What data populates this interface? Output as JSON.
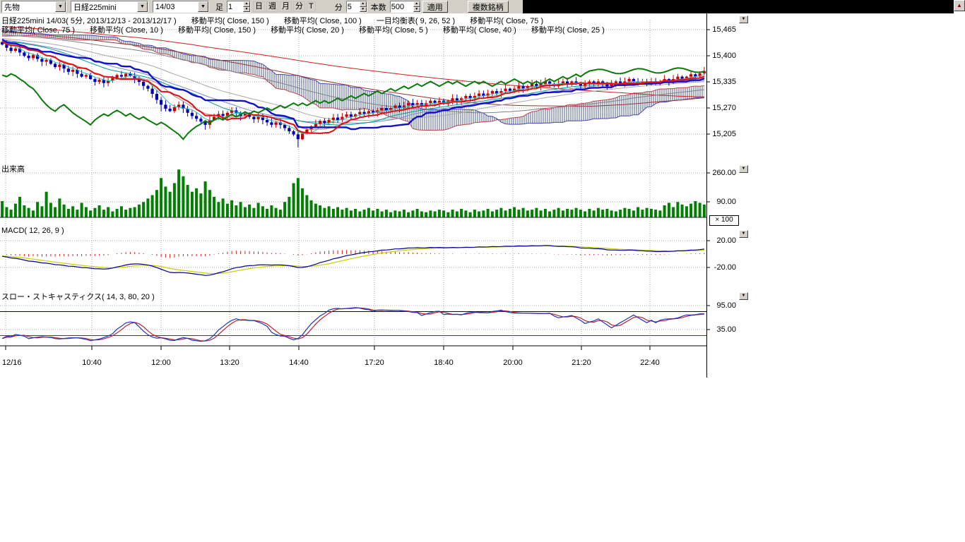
{
  "toolbar": {
    "instrument": "先物",
    "symbol": "日経225mini",
    "contract": "14/03",
    "bar_label": "足",
    "interval_value": "1",
    "unit_day": "日",
    "unit_week": "週",
    "unit_month": "月",
    "unit_minute": "分",
    "unit_tick": "T",
    "minute_label": "分",
    "bars_value": "5",
    "count_label": "本数",
    "count_value": "500",
    "apply_label": "適用",
    "multi_symbol_label": "複数銘柄"
  },
  "legend": {
    "line1": [
      "日経225mini 14/03( 5分, 2013/12/13 - 2013/12/17 )",
      "移動平均( Close, 150 )",
      "移動平均( Close, 100 )",
      "一目均衡表( 9, 26, 52 )",
      "移動平均( Close, 75 )"
    ],
    "line2": [
      "移動平均( Close, 75 )",
      "移動平均( Close, 10 )",
      "移動平均( Close, 150 )",
      "移動平均( Close, 20 )",
      "移動平均( Close, 5 )",
      "移動平均( Close, 40 )",
      "移動平均( Close, 25 )"
    ]
  },
  "panels": {
    "volume_label": "出来高",
    "macd_label": "MACD( 12, 26, 9 )",
    "stoch_label": "スロー・ストキャスティクス( 14, 3, 80, 20 )",
    "multiplier_label": "× 100"
  },
  "chart_data": {
    "type": "candlestick-multi-panel",
    "symbol": "日経225mini 14/03",
    "interval": "5分",
    "date_range": "2013/12/13 - 2013/12/17",
    "price_axis": {
      "ticks": [
        15465,
        15400,
        15335,
        15270,
        15205
      ],
      "labels": [
        "15,465",
        "15,400",
        "15,335",
        "15,270",
        "15,205"
      ]
    },
    "volume_axis": {
      "ticks": [
        260,
        90
      ],
      "labels": [
        "260.00",
        "90.00"
      ]
    },
    "macd_axis": {
      "ticks": [
        20,
        -20
      ],
      "labels": [
        "20.00",
        "-20.00"
      ]
    },
    "stoch_axis": {
      "ticks": [
        95,
        35
      ],
      "labels": [
        "95.00",
        "35.00"
      ]
    },
    "stoch_ref_levels": [
      80,
      20
    ],
    "time_ticks": [
      "12/16",
      "10:40",
      "12:00",
      "13:20",
      "14:40",
      "17:20",
      "18:40",
      "20:00",
      "21:20",
      "22:40"
    ],
    "indicators": {
      "moving_averages": [
        5,
        10,
        20,
        25,
        40,
        75,
        100,
        150
      ],
      "ichimoku": [
        9,
        26,
        52
      ],
      "macd": [
        12,
        26,
        9
      ],
      "stochastics": [
        14,
        3,
        80,
        20
      ]
    },
    "close": [
      15428,
      15420,
      15412,
      15418,
      15408,
      15400,
      15394,
      15402,
      15392,
      15385,
      15390,
      15380,
      15372,
      15378,
      15368,
      15360,
      15365,
      15355,
      15348,
      15352,
      15342,
      15335,
      15340,
      15332,
      15338,
      15345,
      15352,
      15348,
      15355,
      15350,
      15342,
      15335,
      15325,
      15318,
      15305,
      15290,
      15278,
      15268,
      15262,
      15272,
      15278,
      15268,
      15258,
      15250,
      15243,
      15236,
      15228,
      15240,
      15248,
      15255,
      15250,
      15258,
      15264,
      15258,
      15250,
      15256,
      15248,
      15242,
      15248,
      15240,
      15234,
      15228,
      15234,
      15228,
      15220,
      15212,
      15204,
      15192,
      15206,
      15216,
      15224,
      15230,
      15238,
      15232,
      15240,
      15246,
      15240,
      15248,
      15254,
      15248,
      15254,
      15260,
      15255,
      15262,
      15258,
      15264,
      15270,
      15264,
      15270,
      15276,
      15270,
      15276,
      15282,
      15276,
      15282,
      15276,
      15282,
      15288,
      15282,
      15288,
      15282,
      15288,
      15294,
      15288,
      15294,
      15300,
      15294,
      15300,
      15306,
      15300,
      15306,
      15312,
      15306,
      15312,
      15318,
      15312,
      15318,
      15324,
      15318,
      15324,
      15330,
      15324,
      15330,
      15336,
      15330,
      15324,
      15330,
      15336,
      15330,
      15336,
      15330,
      15324,
      15330,
      15336,
      15330,
      15336,
      15330,
      15324,
      15330,
      15336,
      15330,
      15336,
      15342,
      15336,
      15330,
      15336,
      15330,
      15336,
      15330,
      15336,
      15342,
      15336,
      15342,
      15348,
      15342,
      15348,
      15354,
      15348,
      15356,
      15362
    ],
    "volume": [
      95,
      60,
      45,
      80,
      120,
      70,
      55,
      40,
      90,
      65,
      150,
      85,
      60,
      110,
      75,
      50,
      65,
      45,
      85,
      60,
      40,
      55,
      70,
      45,
      60,
      35,
      50,
      65,
      45,
      55,
      60,
      75,
      90,
      110,
      130,
      160,
      230,
      180,
      150,
      200,
      280,
      240,
      190,
      150,
      170,
      140,
      210,
      160,
      120,
      90,
      110,
      80,
      100,
      70,
      90,
      60,
      75,
      55,
      85,
      65,
      50,
      70,
      55,
      45,
      90,
      120,
      200,
      230,
      170,
      130,
      100,
      80,
      70,
      55,
      65,
      50,
      60,
      45,
      55,
      40,
      50,
      35,
      45,
      55,
      40,
      50,
      35,
      45,
      30,
      40,
      35,
      45,
      30,
      40,
      50,
      35,
      30,
      40,
      35,
      45,
      40,
      30,
      45,
      35,
      50,
      40,
      30,
      45,
      35,
      40,
      50,
      35,
      45,
      55,
      40,
      50,
      60,
      45,
      55,
      40,
      45,
      55,
      40,
      50,
      35,
      45,
      55,
      40,
      50,
      45,
      55,
      45,
      35,
      50,
      40,
      55,
      45,
      50,
      40,
      35,
      45,
      55,
      50,
      40,
      60,
      45,
      55,
      50,
      45,
      40,
      70,
      85,
      60,
      90,
      75,
      65,
      80,
      95,
      85,
      75
    ],
    "colors": {
      "candle_up": "#cc0000",
      "candle_down": "#0000bb",
      "volume": "#008000",
      "tenkan": "#dd1111",
      "kijun": "#1111cc",
      "chikou": "#0a7a0a",
      "cloud_hatch": "#3a4a7a",
      "macd_line": "#000099",
      "macd_signal": "#cccc00",
      "macd_hist": "#cc2222",
      "stoch_k": "#2233bb",
      "stoch_d": "#bb2233",
      "grid": "#aaaaaa"
    }
  }
}
